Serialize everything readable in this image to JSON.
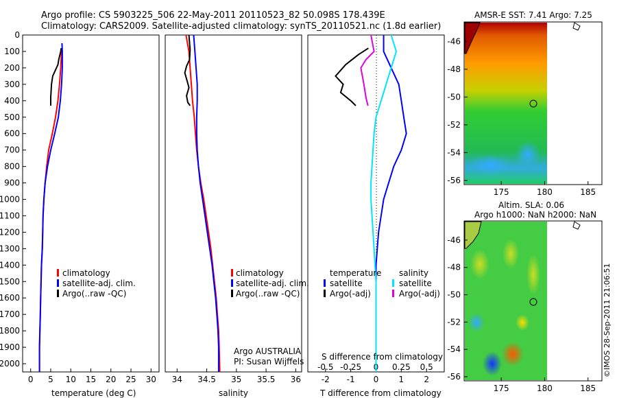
{
  "header": {
    "title_line1": "Argo profile: CS 5903225_506 22-May-2011 20110523_82 50.098S 178.439E",
    "title_line2": "Climatology: CARS2009. Satellite-adjusted climatology: synTS_20110521.nc (1.8d earlier)"
  },
  "watermark": "©IMOS 28-Sep-2011 21:06:51",
  "colors": {
    "climatology": "#ff0000",
    "satellite": "#0000ff",
    "argo": "#000000",
    "salinity_sat": "#00e5ff",
    "salinity_argo": "#e000e0"
  },
  "chart_data": [
    {
      "type": "line",
      "id": "temperature",
      "xlabel": "temperature (deg C)",
      "ylabel": "",
      "xlim": [
        -2,
        32
      ],
      "ylim": [
        2050,
        0
      ],
      "xticks": [
        "0",
        "5",
        "10",
        "15",
        "20",
        "25",
        "30"
      ],
      "yticks": [
        "0",
        "100",
        "200",
        "300",
        "400",
        "500",
        "600",
        "700",
        "800",
        "900",
        "1000",
        "1100",
        "1200",
        "1300",
        "1400",
        "1500",
        "1600",
        "1700",
        "1800",
        "1900",
        "2000"
      ],
      "legend": [
        "climatology",
        "satellite-adj. clim.",
        "Argo(..raw -QC)"
      ],
      "series": [
        {
          "name": "climatology",
          "color": "#ff0000",
          "x": [
            7.8,
            7.7,
            7.5,
            7.2,
            6.8,
            6.2,
            5.4,
            4.5,
            4.0,
            3.6,
            3.3,
            3.1,
            3.0,
            2.9,
            2.7,
            2.6,
            2.5,
            2.4,
            2.3,
            2.2,
            2.2
          ],
          "y": [
            80,
            100,
            200,
            300,
            400,
            500,
            600,
            700,
            800,
            900,
            1000,
            1100,
            1200,
            1300,
            1400,
            1500,
            1600,
            1700,
            1800,
            1900,
            2050
          ]
        },
        {
          "name": "satellite-adj. clim.",
          "color": "#0000ff",
          "x": [
            7.8,
            7.9,
            7.9,
            7.7,
            7.4,
            6.9,
            6.0,
            5.0,
            4.2,
            3.6,
            3.3,
            3.1,
            3.0,
            2.9,
            2.7,
            2.6,
            2.5,
            2.4,
            2.3,
            2.2,
            2.2
          ],
          "y": [
            50,
            100,
            200,
            300,
            400,
            500,
            600,
            700,
            800,
            900,
            1000,
            1100,
            1200,
            1300,
            1400,
            1500,
            1600,
            1700,
            1800,
            1900,
            2050
          ]
        },
        {
          "name": "Argo(..raw -QC)",
          "color": "#000000",
          "x": [
            7.6,
            7.5,
            7.0,
            6.8,
            5.5,
            5.2,
            5.0,
            5.0
          ],
          "y": [
            80,
            100,
            150,
            180,
            250,
            300,
            380,
            430
          ]
        }
      ]
    },
    {
      "type": "line",
      "id": "salinity",
      "xlabel": "salinity",
      "xlim": [
        33.8,
        36.1
      ],
      "ylim": [
        2050,
        0
      ],
      "xticks": [
        "34",
        "34.5",
        "35",
        "35.5",
        "36"
      ],
      "legend": [
        "climatology",
        "satellite-adj. clim.",
        "Argo(..raw -QC)"
      ],
      "annotation": [
        "Argo AUSTRALIA",
        "PI: Susan Wijffels"
      ],
      "series": [
        {
          "name": "climatology",
          "color": "#ff0000",
          "x": [
            34.15,
            34.2,
            34.22,
            34.24,
            34.26,
            34.29,
            34.31,
            34.33,
            34.36,
            34.4,
            34.45,
            34.49,
            34.53,
            34.57,
            34.6,
            34.63,
            34.66,
            34.68,
            34.7,
            34.71,
            34.72
          ],
          "y": [
            0,
            100,
            200,
            300,
            400,
            500,
            600,
            700,
            800,
            900,
            1000,
            1100,
            1200,
            1300,
            1400,
            1500,
            1600,
            1700,
            1800,
            1900,
            2050
          ]
        },
        {
          "name": "satellite-adj. clim.",
          "color": "#0000ff",
          "x": [
            34.28,
            34.3,
            34.32,
            34.34,
            34.34,
            34.33,
            34.33,
            34.34,
            34.36,
            34.39,
            34.43,
            34.47,
            34.51,
            34.55,
            34.59,
            34.62,
            34.65,
            34.67,
            34.69,
            34.7,
            34.7
          ],
          "y": [
            0,
            100,
            200,
            300,
            400,
            500,
            600,
            700,
            800,
            900,
            1000,
            1100,
            1200,
            1300,
            1400,
            1500,
            1600,
            1700,
            1800,
            1900,
            2050
          ]
        },
        {
          "name": "Argo(..raw -QC)",
          "color": "#000000",
          "x": [
            34.2,
            34.22,
            34.21,
            34.16,
            34.13,
            34.17,
            34.2,
            34.16,
            34.18,
            34.22
          ],
          "y": [
            0,
            90,
            150,
            190,
            230,
            280,
            320,
            370,
            410,
            430
          ]
        }
      ]
    },
    {
      "type": "line",
      "id": "difference",
      "xlabel": "T difference from climatology",
      "xlabel_top": "S difference from climatology",
      "xlim": [
        -2.7,
        2.7
      ],
      "ylim": [
        2050,
        0
      ],
      "xticks": [
        "-2",
        "-1",
        "0",
        "1",
        "2"
      ],
      "xticks_top": [
        "-0.5",
        "-0.25",
        "0",
        "0.25",
        "0.5"
      ],
      "legend_headers": [
        "temperature",
        "salinity"
      ],
      "legend": [
        "satellite",
        "Argo(-adj)",
        "satellite",
        "Argo(-adj)"
      ],
      "series": [
        {
          "name": "T satellite",
          "color": "#0000ff",
          "x": [
            0.3,
            0.3,
            0.6,
            0.9,
            1.0,
            1.1,
            1.2,
            1.0,
            0.7,
            0.5,
            0.3,
            0.2,
            0.1,
            0.05,
            0.0,
            0.0,
            0.0,
            0.0,
            0.0,
            0.0
          ],
          "y": [
            0,
            100,
            200,
            300,
            400,
            500,
            600,
            700,
            800,
            900,
            1000,
            1100,
            1200,
            1300,
            1400,
            1500,
            1600,
            1700,
            1800,
            2050
          ]
        },
        {
          "name": "T Argo(-adj)",
          "color": "#000000",
          "x": [
            -0.3,
            -0.7,
            -1.2,
            -1.6,
            -1.3,
            -1.4,
            -1.0,
            -0.8
          ],
          "y": [
            80,
            120,
            180,
            250,
            300,
            350,
            400,
            430
          ]
        },
        {
          "name": "S satellite",
          "color": "#00e5ff",
          "x": [
            0.15,
            0.2,
            0.15,
            0.1,
            0.05,
            0.0,
            -0.02,
            -0.03,
            -0.04,
            -0.05,
            -0.05,
            -0.04,
            -0.03,
            -0.02,
            -0.01,
            0.0,
            0.0,
            0.0,
            0.0,
            0.0
          ],
          "y": [
            0,
            100,
            200,
            300,
            400,
            500,
            600,
            700,
            800,
            900,
            1000,
            1100,
            1200,
            1300,
            1400,
            1500,
            1600,
            1700,
            1800,
            2050
          ]
        },
        {
          "name": "S Argo(-adj)",
          "color": "#e000e0",
          "x": [
            -0.05,
            -0.02,
            -0.1,
            -0.15,
            -0.12,
            -0.1,
            -0.08
          ],
          "y": [
            0,
            100,
            150,
            200,
            300,
            380,
            430
          ]
        }
      ]
    },
    {
      "type": "heatmap",
      "id": "sst_map",
      "title": "AMSR-E SST: 7.41  Argo: 7.25",
      "xticks": [
        "175",
        "180",
        "185"
      ],
      "yticks": [
        "-46",
        "-48",
        "-50",
        "-52",
        "-54",
        "-56"
      ],
      "xlim": [
        170.8,
        186.6
      ],
      "ylim": [
        -56.3,
        -44.6
      ],
      "marker": {
        "lon": 178.44,
        "lat": -50.1
      }
    },
    {
      "type": "heatmap",
      "id": "sla_map",
      "title_line1": "Altim. SLA: 0.06",
      "title_line2": "Argo h1000: NaN h2000: NaN",
      "xticks": [
        "175",
        "180",
        "185"
      ],
      "yticks": [
        "-46",
        "-48",
        "-50",
        "-52",
        "-54",
        "-56"
      ],
      "xlim": [
        170.8,
        186.6
      ],
      "ylim": [
        -56.3,
        -44.6
      ],
      "marker": {
        "lon": 178.44,
        "lat": -50.1
      }
    }
  ]
}
